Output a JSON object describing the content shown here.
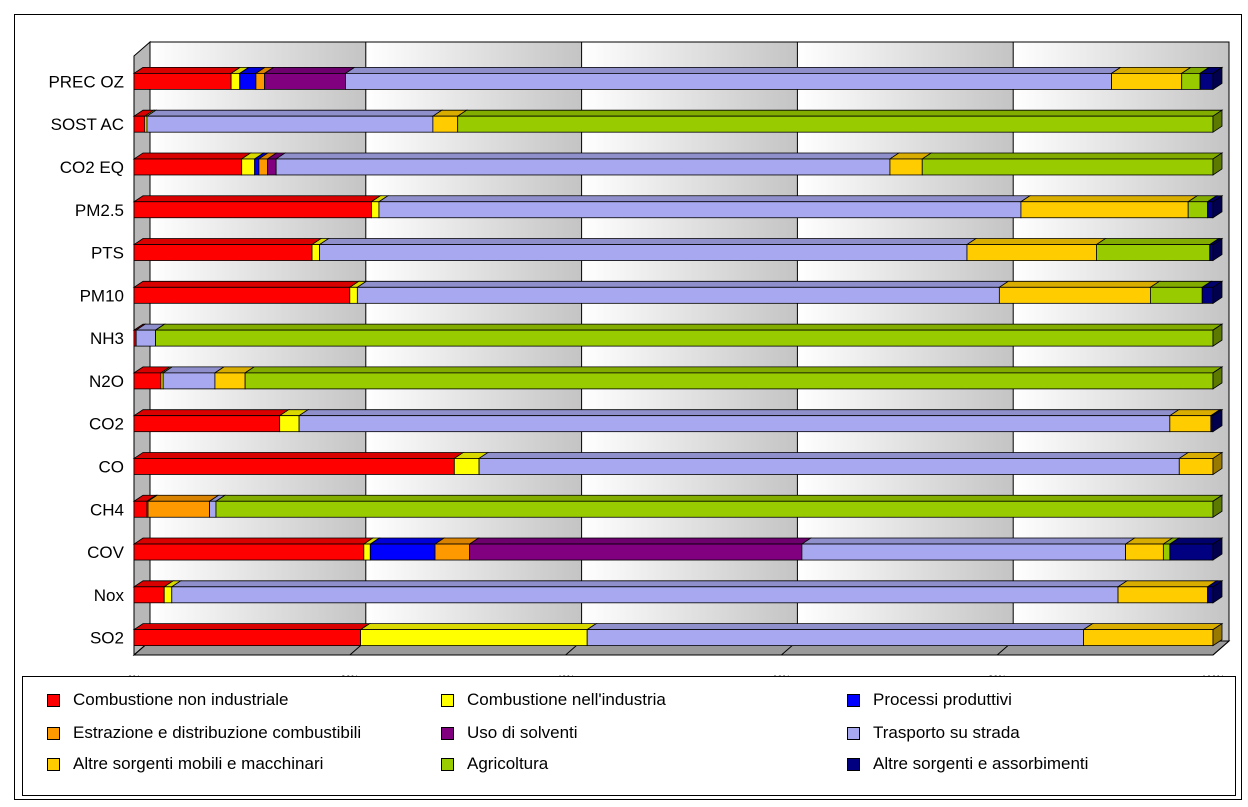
{
  "chart_data": {
    "type": "bar",
    "orientation": "horizontal",
    "stacked": "percent",
    "categories": [
      "PREC OZ",
      "SOST AC",
      "CO2 EQ",
      "PM2.5",
      "PTS",
      "PM10",
      "NH3",
      "N2O",
      "CO2",
      "CO",
      "CH4",
      "COV",
      "Nox",
      "SO2"
    ],
    "x_ticks": [
      "0%",
      "20%",
      "40%",
      "60%",
      "80%",
      "100%"
    ],
    "xlim": [
      0,
      100
    ],
    "grid": true,
    "legend_position": "bottom",
    "series": [
      {
        "name": "Combustione non industriale",
        "color": "#ff0000",
        "values": [
          9.0,
          1.0,
          10.0,
          22.0,
          16.5,
          20.0,
          0.2,
          2.5,
          13.5,
          28.5,
          1.2,
          21.3,
          2.8,
          21.0
        ]
      },
      {
        "name": "Combustione nell'industria",
        "color": "#ffff00",
        "values": [
          0.8,
          0.2,
          1.2,
          0.7,
          0.7,
          0.7,
          0.0,
          0.2,
          1.8,
          2.2,
          0.1,
          0.6,
          0.7,
          21.0
        ]
      },
      {
        "name": "Processi produttivi",
        "color": "#0000ff",
        "values": [
          1.5,
          0.0,
          0.4,
          0.0,
          0.0,
          0.0,
          0.0,
          0.0,
          0.0,
          0.0,
          0.0,
          6.0,
          0.0,
          0.0
        ]
      },
      {
        "name": "Estrazione e distribuzione combustibili",
        "color": "#ff9900",
        "values": [
          0.8,
          0.0,
          0.8,
          0.0,
          0.0,
          0.0,
          0.0,
          0.0,
          0.0,
          0.0,
          5.7,
          3.2,
          0.0,
          0.0
        ]
      },
      {
        "name": "Uso di solventi",
        "color": "#800080",
        "values": [
          7.5,
          0.0,
          0.8,
          0.0,
          0.0,
          0.0,
          0.0,
          0.0,
          0.0,
          0.0,
          0.0,
          30.8,
          0.0,
          0.0
        ]
      },
      {
        "name": "Trasporto su strada",
        "color": "#a8a8f0",
        "values": [
          71.0,
          26.5,
          57.0,
          59.5,
          60.0,
          59.5,
          1.8,
          4.8,
          80.7,
          62.3,
          0.6,
          30.0,
          87.7,
          46.0
        ]
      },
      {
        "name": "Altre sorgenti mobili e macchinari",
        "color": "#ffcc00",
        "values": [
          6.5,
          2.3,
          3.0,
          15.5,
          12.0,
          14.0,
          0.0,
          2.8,
          3.8,
          3.0,
          0.0,
          3.5,
          8.3,
          12.0
        ]
      },
      {
        "name": "Agricoltura",
        "color": "#99cc00",
        "values": [
          1.7,
          70.0,
          27.0,
          1.8,
          10.5,
          4.8,
          98.0,
          89.7,
          0.0,
          0.0,
          92.4,
          0.6,
          0.0,
          0.0
        ]
      },
      {
        "name": "Altre sorgenti e assorbimenti",
        "color": "#000080",
        "values": [
          1.2,
          0.0,
          0.0,
          0.5,
          0.3,
          1.0,
          0.0,
          0.0,
          0.2,
          0.0,
          0.0,
          4.0,
          0.5,
          0.0
        ]
      }
    ]
  }
}
